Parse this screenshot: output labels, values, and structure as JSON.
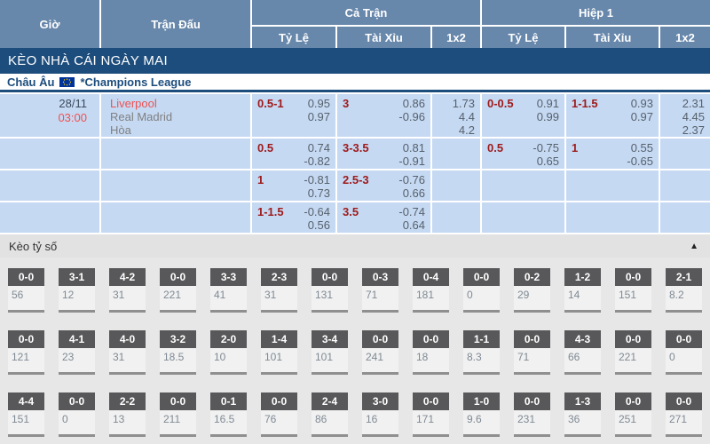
{
  "header": {
    "col_time": "Giờ",
    "col_match": "Trận Đấu",
    "group_full": "Cả Trận",
    "group_half": "Hiệp 1",
    "sub_cols": [
      "Tỷ Lệ",
      "Tài Xỉu",
      "1x2"
    ]
  },
  "banner": {
    "title": "KÈO NHÀ CÁI NGÀY MAI"
  },
  "league": {
    "region": "Châu Âu",
    "flag_icon": "eu-flag",
    "name": "*Champions League"
  },
  "match": {
    "date": "28/11",
    "time": "03:00",
    "home": "Liverpool",
    "away": "Real Madrid",
    "draw": "Hòa"
  },
  "odds_rows": [
    {
      "full_hdp": {
        "line": "0.5-1",
        "top": "0.95",
        "bottom": "0.97"
      },
      "full_ou": {
        "line": "3",
        "top": "0.86",
        "bottom": "-0.96"
      },
      "full_1x2": [
        "1.73",
        "4.4",
        "4.2"
      ],
      "half_hdp": {
        "line": "0-0.5",
        "top": "0.91",
        "bottom": "0.99"
      },
      "half_ou": {
        "line": "1-1.5",
        "top": "0.93",
        "bottom": "0.97"
      },
      "half_1x2": [
        "2.31",
        "4.45",
        "2.37"
      ]
    },
    {
      "full_hdp": {
        "line": "0.5",
        "top": "0.74",
        "bottom": "-0.82"
      },
      "full_ou": {
        "line": "3-3.5",
        "top": "0.81",
        "bottom": "-0.91"
      },
      "full_1x2": [],
      "half_hdp": {
        "line": "0.5",
        "top": "-0.75",
        "bottom": "0.65"
      },
      "half_ou": {
        "line": "1",
        "top": "0.55",
        "bottom": "-0.65"
      },
      "half_1x2": []
    },
    {
      "full_hdp": {
        "line": "1",
        "top": "-0.81",
        "bottom": "0.73"
      },
      "full_ou": {
        "line": "2.5-3",
        "top": "-0.76",
        "bottom": "0.66"
      },
      "full_1x2": [],
      "half_hdp": null,
      "half_ou": null,
      "half_1x2": []
    },
    {
      "full_hdp": {
        "line": "1-1.5",
        "top": "-0.64",
        "bottom": "0.56"
      },
      "full_ou": {
        "line": "3.5",
        "top": "-0.74",
        "bottom": "0.64"
      },
      "full_1x2": [],
      "half_hdp": null,
      "half_ou": null,
      "half_1x2": []
    }
  ],
  "score_section": {
    "title": "Kèo tỷ số",
    "collapse_icon": "▲",
    "rows": [
      [
        {
          "score": "0-0",
          "value": "56"
        },
        {
          "score": "3-1",
          "value": "12"
        },
        {
          "score": "4-2",
          "value": "31"
        },
        {
          "score": "0-0",
          "value": "221"
        },
        {
          "score": "3-3",
          "value": "41"
        },
        {
          "score": "2-3",
          "value": "31"
        },
        {
          "score": "0-0",
          "value": "131"
        },
        {
          "score": "0-3",
          "value": "71"
        },
        {
          "score": "0-4",
          "value": "181"
        },
        {
          "score": "0-0",
          "value": "0"
        },
        {
          "score": "0-2",
          "value": "29"
        },
        {
          "score": "1-2",
          "value": "14"
        },
        {
          "score": "0-0",
          "value": "151"
        },
        {
          "score": "2-1",
          "value": "8.2"
        }
      ],
      [
        {
          "score": "0-0",
          "value": "121"
        },
        {
          "score": "4-1",
          "value": "23"
        },
        {
          "score": "4-0",
          "value": "31"
        },
        {
          "score": "3-2",
          "value": "18.5"
        },
        {
          "score": "2-0",
          "value": "10"
        },
        {
          "score": "1-4",
          "value": "101"
        },
        {
          "score": "3-4",
          "value": "101"
        },
        {
          "score": "0-0",
          "value": "241"
        },
        {
          "score": "0-0",
          "value": "18"
        },
        {
          "score": "1-1",
          "value": "8.3"
        },
        {
          "score": "0-0",
          "value": "71"
        },
        {
          "score": "4-3",
          "value": "66"
        },
        {
          "score": "0-0",
          "value": "221"
        },
        {
          "score": "0-0",
          "value": "0"
        }
      ],
      [
        {
          "score": "4-4",
          "value": "151"
        },
        {
          "score": "0-0",
          "value": "0"
        },
        {
          "score": "2-2",
          "value": "13"
        },
        {
          "score": "0-0",
          "value": "211"
        },
        {
          "score": "0-1",
          "value": "16.5"
        },
        {
          "score": "0-0",
          "value": "76"
        },
        {
          "score": "2-4",
          "value": "86"
        },
        {
          "score": "3-0",
          "value": "16"
        },
        {
          "score": "0-0",
          "value": "171"
        },
        {
          "score": "1-0",
          "value": "9.6"
        },
        {
          "score": "0-0",
          "value": "231"
        },
        {
          "score": "1-3",
          "value": "36"
        },
        {
          "score": "0-0",
          "value": "251"
        },
        {
          "score": "0-0",
          "value": "271"
        }
      ]
    ]
  },
  "colors": {
    "header_bg": "#6787ab",
    "banner_bg": "#1d4d7d",
    "row_bg": "#c5d9f3",
    "handicap_red": "#9e1a1a",
    "team_red": "#ee5252",
    "badge_gray": "#58585a",
    "section_bg": "#e7e7e7"
  }
}
